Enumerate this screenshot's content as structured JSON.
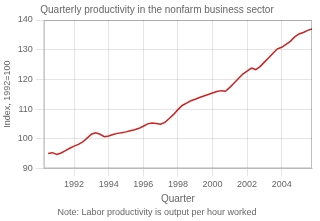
{
  "chart_data": {
    "type": "line",
    "title": "Quarterly productivity in the nonfarm business sector",
    "xlabel": "Quarter",
    "ylabel": "Index, 1992=100",
    "annotations": [
      "Note: Labor productivity is output per hour worked"
    ],
    "color": "#CC2222",
    "grid": true,
    "xlim": [
      1990.25,
      2005.75
    ],
    "xticks": [
      1992,
      1994,
      1996,
      1998,
      2000,
      2002,
      2004
    ],
    "ylim": [
      90,
      140
    ],
    "yticks": [
      90,
      100,
      110,
      120,
      130,
      140
    ],
    "x": [
      1990.5,
      1990.75,
      1991,
      1991.25,
      1991.5,
      1991.75,
      1992,
      1992.25,
      1992.5,
      1992.75,
      1993,
      1993.25,
      1993.5,
      1993.75,
      1994,
      1994.25,
      1994.5,
      1994.75,
      1995,
      1995.25,
      1995.5,
      1995.75,
      1996,
      1996.25,
      1996.5,
      1996.75,
      1997,
      1997.25,
      1997.5,
      1997.75,
      1998,
      1998.25,
      1998.5,
      1998.75,
      1999,
      1999.25,
      1999.5,
      1999.75,
      2000,
      2000.25,
      2000.5,
      2000.75,
      2001,
      2001.25,
      2001.5,
      2001.75,
      2002,
      2002.25,
      2002.5,
      2002.75,
      2003,
      2003.25,
      2003.5,
      2003.75,
      2004,
      2004.25,
      2004.5,
      2004.75,
      2005,
      2005.25,
      2005.5,
      2005.75
    ],
    "values": [
      95.0,
      95.3,
      94.7,
      95.2,
      96.0,
      96.8,
      97.5,
      98.1,
      98.9,
      100.2,
      101.5,
      102.0,
      101.5,
      100.7,
      100.9,
      101.4,
      101.8,
      102.0,
      102.3,
      102.7,
      103.0,
      103.5,
      104.2,
      105.0,
      105.3,
      105.1,
      104.9,
      105.5,
      106.8,
      108.2,
      109.8,
      111.2,
      112.0,
      112.8,
      113.3,
      113.9,
      114.4,
      114.9,
      115.4,
      115.9,
      116.2,
      116.0,
      117.3,
      118.8,
      120.3,
      121.8,
      122.8,
      123.8,
      123.3,
      124.3,
      125.8,
      127.3,
      128.8,
      130.3,
      130.8,
      131.8,
      132.8,
      134.3,
      135.3,
      135.8,
      136.5,
      137.0
    ]
  }
}
